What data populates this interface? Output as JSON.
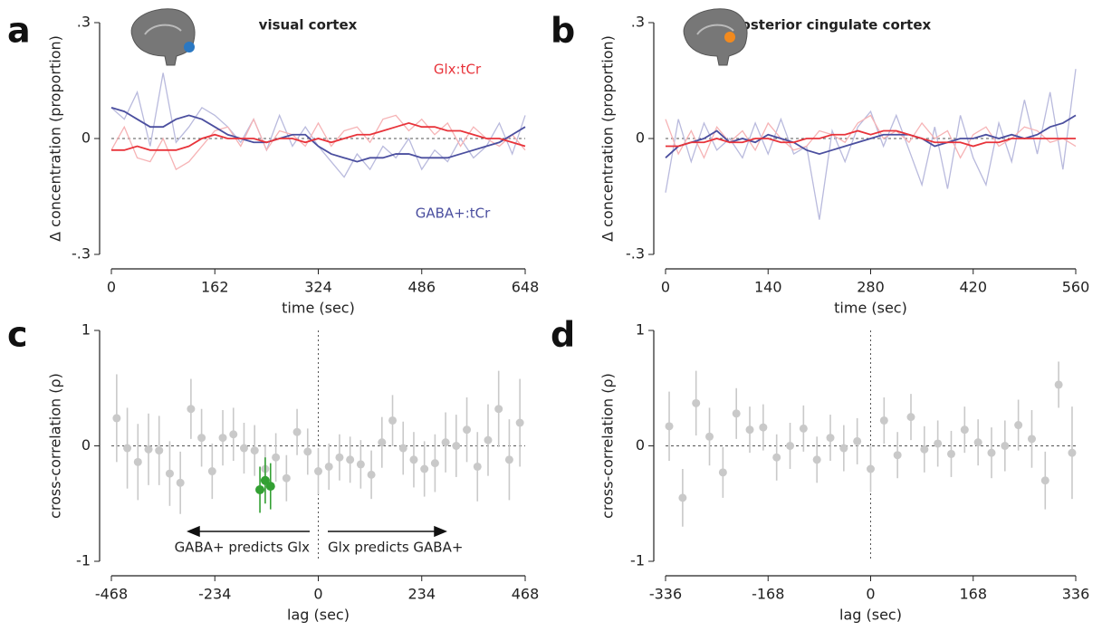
{
  "chart_data": [
    {
      "type": "line",
      "panel": "a",
      "title": "visual cortex",
      "xlabel": "time (sec)",
      "ylabel": "Δ concentration (proportion)",
      "x": [
        0,
        20.25,
        40.5,
        60.75,
        81,
        101.25,
        121.5,
        141.75,
        162,
        182.25,
        202.5,
        222.75,
        243,
        263.25,
        283.5,
        303.75,
        324,
        344.25,
        364.5,
        384.75,
        405,
        425.25,
        445.5,
        465.75,
        486,
        506.25,
        526.5,
        546.75,
        567,
        587.25,
        607.5,
        627.75,
        648
      ],
      "series": [
        {
          "color": "#b9badd",
          "values": [
            0.08,
            0.05,
            0.12,
            -0.02,
            0.17,
            -0.01,
            0.03,
            0.08,
            0.06,
            0.03,
            -0.01,
            0.05,
            -0.03,
            0.06,
            -0.02,
            0.03,
            -0.02,
            -0.06,
            -0.1,
            -0.04,
            -0.08,
            -0.02,
            -0.05,
            0.0,
            -0.08,
            -0.03,
            -0.06,
            0.0,
            -0.05,
            -0.02,
            0.04,
            -0.04,
            0.06
          ]
        },
        {
          "color": "#f6b3b5",
          "values": [
            -0.03,
            0.03,
            -0.05,
            -0.06,
            0.0,
            -0.08,
            -0.06,
            -0.02,
            0.02,
            0.03,
            -0.02,
            0.05,
            -0.03,
            0.02,
            0.01,
            -0.02,
            0.04,
            -0.02,
            0.02,
            0.03,
            -0.01,
            0.05,
            0.06,
            0.02,
            0.05,
            0.01,
            0.04,
            -0.02,
            0.03,
            0.0,
            -0.02,
            0.01,
            -0.03
          ]
        },
        {
          "name": "GABA+:tCr",
          "color": "#4b4f9f",
          "values": [
            0.08,
            0.07,
            0.05,
            0.03,
            0.03,
            0.05,
            0.06,
            0.05,
            0.03,
            0.01,
            0.0,
            -0.01,
            -0.01,
            0.0,
            0.01,
            0.01,
            -0.02,
            -0.04,
            -0.05,
            -0.06,
            -0.05,
            -0.05,
            -0.04,
            -0.04,
            -0.05,
            -0.05,
            -0.05,
            -0.04,
            -0.03,
            -0.02,
            -0.01,
            0.01,
            0.03
          ]
        },
        {
          "name": "Glx:tCr",
          "color": "#e8333a",
          "values": [
            -0.03,
            -0.03,
            -0.02,
            -0.03,
            -0.03,
            -0.03,
            -0.02,
            0.0,
            0.01,
            0.0,
            0.0,
            0.0,
            -0.01,
            0.0,
            0.0,
            -0.01,
            0.0,
            -0.01,
            0.0,
            0.01,
            0.01,
            0.02,
            0.03,
            0.04,
            0.03,
            0.03,
            0.02,
            0.02,
            0.01,
            0.0,
            0.0,
            -0.01,
            -0.02
          ]
        }
      ],
      "xlim": [
        0,
        648
      ],
      "xticks": [
        0,
        162,
        324,
        486,
        648
      ],
      "ylim": [
        -0.3,
        0.3
      ],
      "yticks": [
        {
          "value": 0.3,
          "label": ".3"
        },
        0,
        {
          "value": -0.3,
          "label": "-.3"
        }
      ]
    },
    {
      "type": "line",
      "panel": "b",
      "title": "posterior cingulate cortex",
      "xlabel": "time (sec)",
      "ylabel": "Δ concentration (proportion)",
      "x": [
        0,
        17.5,
        35,
        52.5,
        70,
        87.5,
        105,
        122.5,
        140,
        157.5,
        175,
        192.5,
        210,
        227.5,
        245,
        262.5,
        280,
        297.5,
        315,
        332.5,
        350,
        367.5,
        385,
        402.5,
        420,
        437.5,
        455,
        472.5,
        490,
        507.5,
        525,
        542.5,
        560
      ],
      "series": [
        {
          "color": "#b9badd",
          "values": [
            -0.14,
            0.05,
            -0.06,
            0.04,
            -0.03,
            0.0,
            -0.05,
            0.04,
            -0.04,
            0.05,
            -0.04,
            -0.02,
            -0.21,
            0.02,
            -0.06,
            0.03,
            0.07,
            -0.02,
            0.06,
            -0.03,
            -0.12,
            0.03,
            -0.13,
            0.06,
            -0.05,
            -0.12,
            0.04,
            -0.06,
            0.1,
            -0.04,
            0.12,
            -0.08,
            0.18
          ]
        },
        {
          "color": "#f6b3b5",
          "values": [
            0.05,
            -0.04,
            0.02,
            -0.05,
            0.03,
            -0.01,
            0.02,
            -0.03,
            0.04,
            0.0,
            -0.03,
            -0.02,
            0.02,
            0.01,
            -0.01,
            0.04,
            0.06,
            0.0,
            0.02,
            -0.01,
            0.04,
            0.0,
            0.02,
            -0.05,
            0.01,
            0.03,
            -0.02,
            0.0,
            0.03,
            0.02,
            -0.01,
            0.0,
            -0.02
          ]
        },
        {
          "color": "#4b4f9f",
          "values": [
            -0.05,
            -0.02,
            -0.01,
            0.0,
            0.02,
            -0.01,
            0.0,
            -0.01,
            0.01,
            0.0,
            -0.01,
            -0.03,
            -0.04,
            -0.03,
            -0.02,
            -0.01,
            0.0,
            0.01,
            0.01,
            0.01,
            0.0,
            -0.02,
            -0.01,
            0.0,
            0.0,
            0.01,
            0.0,
            0.01,
            0.0,
            0.01,
            0.03,
            0.04,
            0.06
          ]
        },
        {
          "color": "#e8333a",
          "values": [
            -0.02,
            -0.02,
            -0.01,
            -0.01,
            0.0,
            -0.01,
            -0.01,
            0.0,
            0.0,
            -0.01,
            -0.01,
            0.0,
            0.0,
            0.01,
            0.01,
            0.02,
            0.01,
            0.02,
            0.02,
            0.01,
            0.0,
            -0.01,
            -0.01,
            -0.01,
            -0.02,
            -0.01,
            -0.01,
            0.0,
            0.0,
            0.0,
            0.0,
            0.0,
            0.0
          ]
        }
      ],
      "xlim": [
        0,
        560
      ],
      "xticks": [
        0,
        140,
        280,
        420,
        560
      ],
      "ylim": [
        -0.3,
        0.3
      ],
      "yticks": [
        {
          "value": 0.3,
          "label": ".3"
        },
        0,
        {
          "value": -0.3,
          "label": "-.3"
        }
      ]
    },
    {
      "type": "errorbar",
      "panel": "c",
      "xlabel": "lag (sec)",
      "ylabel": "cross-correlation (ρ)",
      "annotations": [
        "GABA+ predicts Glx",
        "Glx predicts GABA+"
      ],
      "series": [
        {
          "color": "#c9c9c9",
          "x": [
            -456,
            -432,
            -408,
            -384,
            -360,
            -336,
            -312,
            -288,
            -264,
            -240,
            -216,
            -192,
            -168,
            -144,
            -120,
            -96,
            -72,
            -48,
            -24,
            0,
            24,
            48,
            72,
            96,
            120,
            144,
            168,
            192,
            216,
            240,
            264,
            288,
            312,
            336,
            360,
            384,
            408,
            432,
            456
          ],
          "values": [
            0.24,
            -0.02,
            -0.14,
            -0.03,
            -0.04,
            -0.24,
            -0.32,
            0.32,
            0.07,
            -0.22,
            0.07,
            0.1,
            -0.02,
            -0.04,
            -0.2,
            -0.1,
            -0.28,
            0.12,
            -0.05,
            -0.22,
            -0.18,
            -0.1,
            -0.12,
            -0.16,
            -0.25,
            0.03,
            0.22,
            -0.02,
            -0.12,
            -0.2,
            -0.15,
            0.03,
            0.0,
            0.14,
            -0.18,
            0.05,
            0.32,
            -0.12,
            0.2
          ],
          "errors": [
            0.38,
            0.35,
            0.33,
            0.31,
            0.3,
            0.28,
            0.27,
            0.26,
            0.25,
            0.24,
            0.24,
            0.23,
            0.22,
            0.22,
            0.21,
            0.21,
            0.2,
            0.2,
            0.2,
            0.2,
            0.2,
            0.2,
            0.2,
            0.21,
            0.21,
            0.22,
            0.22,
            0.23,
            0.24,
            0.24,
            0.25,
            0.26,
            0.27,
            0.28,
            0.3,
            0.31,
            0.33,
            0.35,
            0.38
          ]
        },
        {
          "color": "#33a033",
          "x": [
            -132,
            -120,
            -108
          ],
          "values": [
            -0.38,
            -0.3,
            -0.35
          ],
          "errors": [
            0.2,
            0.2,
            0.2
          ]
        }
      ],
      "xlim": [
        -468,
        468
      ],
      "xticks": [
        -468,
        -234,
        0,
        234,
        468
      ],
      "ylim": [
        -1,
        1
      ],
      "yticks": [
        1,
        0,
        -1
      ]
    },
    {
      "type": "errorbar",
      "panel": "d",
      "xlabel": "lag (sec)",
      "ylabel": "cross-correlation (ρ)",
      "series": [
        {
          "color": "#c9c9c9",
          "x": [
            -330,
            -308,
            -286,
            -264,
            -242,
            -220,
            -198,
            -176,
            -154,
            -132,
            -110,
            -88,
            -66,
            -44,
            -22,
            0,
            22,
            44,
            66,
            88,
            110,
            132,
            154,
            176,
            198,
            220,
            242,
            264,
            286,
            308,
            330
          ],
          "values": [
            0.17,
            -0.45,
            0.37,
            0.08,
            -0.23,
            0.28,
            0.14,
            0.16,
            -0.1,
            0.0,
            0.15,
            -0.12,
            0.07,
            -0.02,
            0.04,
            -0.2,
            0.22,
            -0.08,
            0.25,
            -0.03,
            0.02,
            -0.07,
            0.14,
            0.03,
            -0.06,
            0.0,
            0.18,
            0.06,
            -0.3,
            0.53,
            -0.06
          ],
          "errors": [
            0.3,
            0.25,
            0.28,
            0.25,
            0.22,
            0.22,
            0.2,
            0.2,
            0.2,
            0.2,
            0.2,
            0.2,
            0.2,
            0.2,
            0.2,
            0.2,
            0.2,
            0.2,
            0.2,
            0.2,
            0.2,
            0.2,
            0.2,
            0.2,
            0.22,
            0.22,
            0.22,
            0.25,
            0.25,
            0.2,
            0.4
          ]
        }
      ],
      "xlim": [
        -336,
        336
      ],
      "xticks": [
        -336,
        -168,
        0,
        168,
        336
      ],
      "ylim": [
        -1,
        1
      ],
      "yticks": [
        1,
        0,
        -1
      ]
    }
  ]
}
